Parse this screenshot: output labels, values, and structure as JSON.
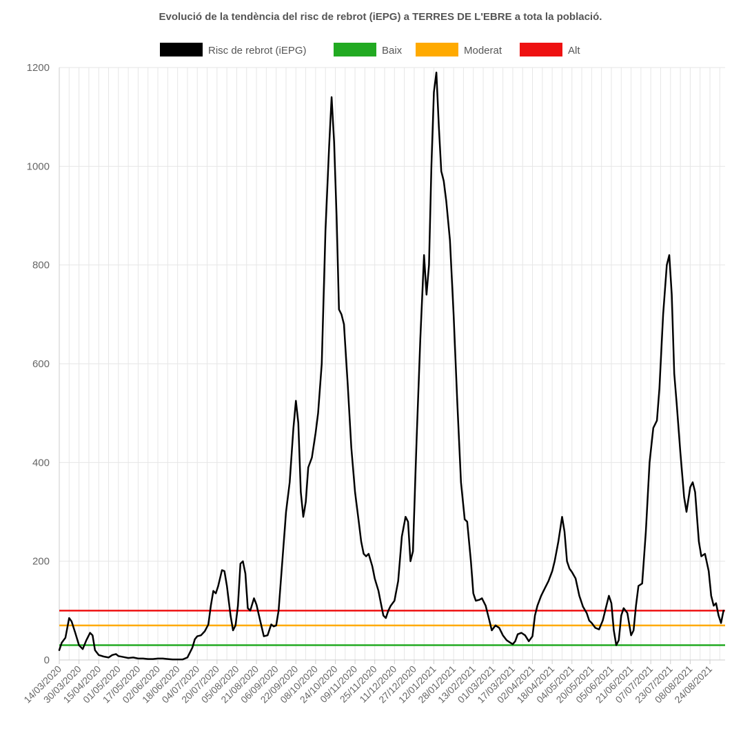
{
  "chart_data": {
    "type": "line",
    "title": "Evolució de la tendència del risc de rebrot (iEPG) a TERRES DE L'EBRE a tota la població.",
    "xlabel": "",
    "ylabel": "",
    "ylim": [
      0,
      1200
    ],
    "yticks": [
      0,
      200,
      400,
      600,
      800,
      1000,
      1200
    ],
    "grid": true,
    "legend_position": "top-center",
    "x_tick_labels": [
      "14/03/2020",
      "30/03/2020",
      "15/04/2020",
      "01/05/2020",
      "17/05/2020",
      "02/06/2020",
      "18/06/2020",
      "04/07/2020",
      "20/07/2020",
      "05/08/2020",
      "21/08/2020",
      "06/09/2020",
      "22/09/2020",
      "08/10/2020",
      "24/10/2020",
      "09/11/2020",
      "25/11/2020",
      "11/12/2020",
      "27/12/2020",
      "12/01/2021",
      "28/01/2021",
      "13/02/2021",
      "01/03/2021",
      "17/03/2021",
      "02/04/2021",
      "18/04/2021",
      "04/05/2021",
      "20/05/2021",
      "05/06/2021",
      "21/06/2021",
      "07/07/2021",
      "23/07/2021",
      "08/08/2021",
      "24/08/2021"
    ],
    "series": [
      {
        "name": "Risc de rebrot (iEPG)",
        "color": "#000000",
        "points": [
          [
            "14/03/2020",
            20
          ],
          [
            "16/03/2020",
            35
          ],
          [
            "19/03/2020",
            45
          ],
          [
            "22/03/2020",
            85
          ],
          [
            "24/03/2020",
            78
          ],
          [
            "27/03/2020",
            55
          ],
          [
            "30/03/2020",
            30
          ],
          [
            "02/04/2020",
            22
          ],
          [
            "05/04/2020",
            40
          ],
          [
            "08/04/2020",
            55
          ],
          [
            "10/04/2020",
            50
          ],
          [
            "12/04/2020",
            20
          ],
          [
            "15/04/2020",
            10
          ],
          [
            "19/04/2020",
            7
          ],
          [
            "23/04/2020",
            5
          ],
          [
            "26/04/2020",
            10
          ],
          [
            "29/04/2020",
            12
          ],
          [
            "01/05/2020",
            8
          ],
          [
            "05/05/2020",
            6
          ],
          [
            "09/05/2020",
            4
          ],
          [
            "13/05/2020",
            5
          ],
          [
            "17/05/2020",
            3
          ],
          [
            "21/05/2020",
            3
          ],
          [
            "25/05/2020",
            2
          ],
          [
            "29/05/2020",
            2
          ],
          [
            "02/06/2020",
            3
          ],
          [
            "06/06/2020",
            3
          ],
          [
            "10/06/2020",
            2
          ],
          [
            "14/06/2020",
            1
          ],
          [
            "18/06/2020",
            1
          ],
          [
            "22/06/2020",
            1
          ],
          [
            "26/06/2020",
            5
          ],
          [
            "30/06/2020",
            25
          ],
          [
            "02/07/2020",
            42
          ],
          [
            "04/07/2020",
            48
          ],
          [
            "07/07/2020",
            50
          ],
          [
            "10/07/2020",
            58
          ],
          [
            "13/07/2020",
            72
          ],
          [
            "15/07/2020",
            110
          ],
          [
            "17/07/2020",
            140
          ],
          [
            "19/07/2020",
            135
          ],
          [
            "21/07/2020",
            150
          ],
          [
            "24/07/2020",
            182
          ],
          [
            "26/07/2020",
            180
          ],
          [
            "28/07/2020",
            150
          ],
          [
            "31/07/2020",
            90
          ],
          [
            "02/08/2020",
            60
          ],
          [
            "04/08/2020",
            70
          ],
          [
            "06/08/2020",
            110
          ],
          [
            "08/08/2020",
            195
          ],
          [
            "10/08/2020",
            200
          ],
          [
            "12/08/2020",
            175
          ],
          [
            "14/08/2020",
            105
          ],
          [
            "16/08/2020",
            100
          ],
          [
            "19/08/2020",
            125
          ],
          [
            "21/08/2020",
            112
          ],
          [
            "24/08/2020",
            80
          ],
          [
            "27/08/2020",
            48
          ],
          [
            "30/08/2020",
            50
          ],
          [
            "02/09/2020",
            72
          ],
          [
            "04/09/2020",
            68
          ],
          [
            "06/09/2020",
            70
          ],
          [
            "08/09/2020",
            100
          ],
          [
            "11/09/2020",
            200
          ],
          [
            "14/09/2020",
            300
          ],
          [
            "17/09/2020",
            360
          ],
          [
            "20/09/2020",
            470
          ],
          [
            "22/09/2020",
            525
          ],
          [
            "24/09/2020",
            480
          ],
          [
            "26/09/2020",
            340
          ],
          [
            "28/09/2020",
            290
          ],
          [
            "30/09/2020",
            320
          ],
          [
            "02/10/2020",
            390
          ],
          [
            "05/10/2020",
            410
          ],
          [
            "08/10/2020",
            460
          ],
          [
            "10/10/2020",
            500
          ],
          [
            "13/10/2020",
            600
          ],
          [
            "16/10/2020",
            870
          ],
          [
            "19/10/2020",
            1040
          ],
          [
            "21/10/2020",
            1140
          ],
          [
            "23/10/2020",
            1050
          ],
          [
            "25/10/2020",
            900
          ],
          [
            "27/10/2020",
            710
          ],
          [
            "29/10/2020",
            700
          ],
          [
            "31/10/2020",
            680
          ],
          [
            "03/11/2020",
            560
          ],
          [
            "06/11/2020",
            430
          ],
          [
            "09/11/2020",
            340
          ],
          [
            "12/11/2020",
            280
          ],
          [
            "14/11/2020",
            240
          ],
          [
            "16/11/2020",
            215
          ],
          [
            "18/11/2020",
            210
          ],
          [
            "20/11/2020",
            215
          ],
          [
            "23/11/2020",
            190
          ],
          [
            "25/11/2020",
            165
          ],
          [
            "28/11/2020",
            140
          ],
          [
            "30/11/2020",
            115
          ],
          [
            "02/12/2020",
            90
          ],
          [
            "04/12/2020",
            85
          ],
          [
            "06/12/2020",
            100
          ],
          [
            "08/12/2020",
            110
          ],
          [
            "11/12/2020",
            120
          ],
          [
            "14/12/2020",
            160
          ],
          [
            "17/12/2020",
            250
          ],
          [
            "20/12/2020",
            290
          ],
          [
            "22/12/2020",
            280
          ],
          [
            "24/12/2020",
            200
          ],
          [
            "26/12/2020",
            220
          ],
          [
            "29/12/2020",
            450
          ],
          [
            "01/01/2021",
            650
          ],
          [
            "04/01/2021",
            820
          ],
          [
            "06/01/2021",
            740
          ],
          [
            "08/01/2021",
            800
          ],
          [
            "10/01/2021",
            1000
          ],
          [
            "12/01/2021",
            1150
          ],
          [
            "14/01/2021",
            1190
          ],
          [
            "16/01/2021",
            1080
          ],
          [
            "18/01/2021",
            990
          ],
          [
            "20/01/2021",
            970
          ],
          [
            "22/01/2021",
            930
          ],
          [
            "25/01/2021",
            850
          ],
          [
            "28/01/2021",
            700
          ],
          [
            "31/01/2021",
            520
          ],
          [
            "03/02/2021",
            360
          ],
          [
            "06/02/2021",
            285
          ],
          [
            "08/02/2021",
            280
          ],
          [
            "11/02/2021",
            200
          ],
          [
            "13/02/2021",
            135
          ],
          [
            "15/02/2021",
            120
          ],
          [
            "18/02/2021",
            122
          ],
          [
            "20/02/2021",
            125
          ],
          [
            "23/02/2021",
            110
          ],
          [
            "26/02/2021",
            80
          ],
          [
            "28/02/2021",
            60
          ],
          [
            "03/03/2021",
            70
          ],
          [
            "06/03/2021",
            65
          ],
          [
            "09/03/2021",
            50
          ],
          [
            "12/03/2021",
            40
          ],
          [
            "15/03/2021",
            35
          ],
          [
            "17/03/2021",
            32
          ],
          [
            "19/03/2021",
            38
          ],
          [
            "21/03/2021",
            52
          ],
          [
            "24/03/2021",
            55
          ],
          [
            "27/03/2021",
            50
          ],
          [
            "30/03/2021",
            38
          ],
          [
            "02/04/2021",
            48
          ],
          [
            "04/04/2021",
            90
          ],
          [
            "06/04/2021",
            110
          ],
          [
            "09/04/2021",
            130
          ],
          [
            "12/04/2021",
            145
          ],
          [
            "15/04/2021",
            160
          ],
          [
            "18/04/2021",
            180
          ],
          [
            "20/04/2021",
            200
          ],
          [
            "23/04/2021",
            240
          ],
          [
            "26/04/2021",
            290
          ],
          [
            "28/04/2021",
            260
          ],
          [
            "30/04/2021",
            200
          ],
          [
            "02/05/2021",
            185
          ],
          [
            "04/05/2021",
            178
          ],
          [
            "07/05/2021",
            165
          ],
          [
            "10/05/2021",
            130
          ],
          [
            "13/05/2021",
            108
          ],
          [
            "16/05/2021",
            95
          ],
          [
            "18/05/2021",
            80
          ],
          [
            "20/05/2021",
            75
          ],
          [
            "23/05/2021",
            65
          ],
          [
            "26/05/2021",
            62
          ],
          [
            "29/05/2021",
            80
          ],
          [
            "01/06/2021",
            110
          ],
          [
            "03/06/2021",
            130
          ],
          [
            "05/06/2021",
            115
          ],
          [
            "07/06/2021",
            60
          ],
          [
            "09/06/2021",
            30
          ],
          [
            "11/06/2021",
            40
          ],
          [
            "13/06/2021",
            90
          ],
          [
            "15/06/2021",
            105
          ],
          [
            "18/06/2021",
            95
          ],
          [
            "21/06/2021",
            50
          ],
          [
            "23/06/2021",
            60
          ],
          [
            "25/06/2021",
            110
          ],
          [
            "27/06/2021",
            150
          ],
          [
            "30/06/2021",
            155
          ],
          [
            "03/07/2021",
            260
          ],
          [
            "06/07/2021",
            400
          ],
          [
            "09/07/2021",
            470
          ],
          [
            "12/07/2021",
            485
          ],
          [
            "14/07/2021",
            550
          ],
          [
            "17/07/2021",
            700
          ],
          [
            "20/07/2021",
            800
          ],
          [
            "22/07/2021",
            820
          ],
          [
            "24/07/2021",
            740
          ],
          [
            "26/07/2021",
            580
          ],
          [
            "28/07/2021",
            520
          ],
          [
            "31/07/2021",
            420
          ],
          [
            "03/08/2021",
            330
          ],
          [
            "05/08/2021",
            300
          ],
          [
            "08/08/2021",
            350
          ],
          [
            "10/08/2021",
            360
          ],
          [
            "12/08/2021",
            340
          ],
          [
            "15/08/2021",
            240
          ],
          [
            "17/08/2021",
            210
          ],
          [
            "20/08/2021",
            215
          ],
          [
            "23/08/2021",
            180
          ],
          [
            "25/08/2021",
            130
          ],
          [
            "27/08/2021",
            110
          ],
          [
            "29/08/2021",
            115
          ],
          [
            "31/08/2021",
            90
          ],
          [
            "02/09/2021",
            75
          ],
          [
            "04/09/2021",
            100
          ]
        ]
      },
      {
        "name": "Baix",
        "color": "#22aa22",
        "value": 30
      },
      {
        "name": "Moderat",
        "color": "#ffaa00",
        "value": 70
      },
      {
        "name": "Alt",
        "color": "#ee1111",
        "value": 100
      }
    ]
  }
}
